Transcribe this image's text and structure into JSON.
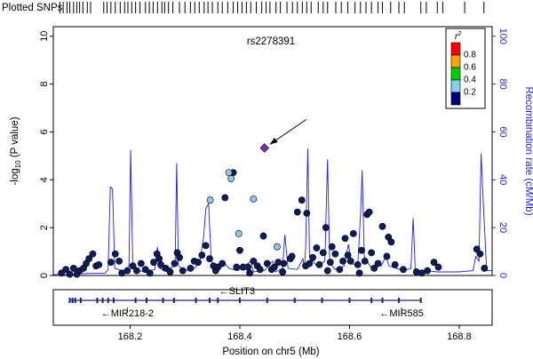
{
  "chart_data": {
    "type": "scatter",
    "title": "rs2278391",
    "snp_track_label": "Plotted SNPs",
    "xlabel": "Position on chr5 (Mb)",
    "ylabel_left": "-log10 (P value)",
    "ylabel_left_prefix": "-log",
    "ylabel_left_sub": "10",
    "ylabel_left_suffix": " (P value)",
    "ylabel_right": "Recombination rate (cM/Mb)",
    "xlim": [
      168.06,
      168.86
    ],
    "ylim": [
      0,
      10.4
    ],
    "right_ylim": [
      0,
      104
    ],
    "xticks": [
      "168.2",
      "168.4",
      "168.6",
      "168.8"
    ],
    "yticks_left": [
      "0",
      "2",
      "4",
      "6",
      "8",
      "10"
    ],
    "yticks_right": [
      "0",
      "20",
      "40",
      "60",
      "80",
      "100"
    ],
    "legend": {
      "title": "r",
      "title_sup": "2",
      "placement": "top-right",
      "bins": [
        {
          "label": "0.8",
          "color": "#ff0000"
        },
        {
          "label": "0.6",
          "color": "#ffa500"
        },
        {
          "label": "0.4",
          "color": "#00cc00"
        },
        {
          "label": "0.2",
          "color": "#87ceeb"
        },
        {
          "label": "",
          "color": "#000080"
        }
      ]
    },
    "colors": {
      "lead": "#7b2fa8",
      "low_ld": "#0b1d5b",
      "mid_ld": "#8ecae8",
      "recomb": "#1f1fe0"
    },
    "lead_snp": {
      "name": "rs2278391",
      "x": 168.445,
      "y": 5.33
    },
    "snp_track_positions": [
      168.072,
      168.078,
      168.085,
      168.09,
      168.097,
      168.103,
      168.108,
      168.114,
      168.122,
      168.128,
      168.152,
      168.158,
      168.165,
      168.173,
      168.182,
      168.19,
      168.196,
      168.203,
      168.21,
      168.218,
      168.228,
      168.235,
      168.242,
      168.25,
      168.258,
      168.263,
      168.27,
      168.278,
      168.29,
      168.3,
      168.31,
      168.318,
      168.326,
      168.335,
      168.342,
      168.35,
      168.36,
      168.368,
      168.378,
      168.388,
      168.396,
      168.404,
      168.412,
      168.42,
      168.43,
      168.44,
      168.448,
      168.455,
      168.466,
      168.474,
      168.486,
      168.496,
      168.505,
      168.514,
      168.522,
      168.53,
      168.543,
      168.552,
      168.56,
      168.575,
      168.585,
      168.597,
      168.61,
      168.62,
      168.63,
      168.64,
      168.652,
      168.66,
      168.675,
      168.69,
      168.7,
      168.73,
      168.74,
      168.76,
      168.77,
      168.81,
      168.845
    ],
    "points": [
      {
        "x": 168.075,
        "y": 0.1,
        "ld": "low"
      },
      {
        "x": 168.083,
        "y": 0.25,
        "ld": "low"
      },
      {
        "x": 168.09,
        "y": 0.05,
        "ld": "low"
      },
      {
        "x": 168.097,
        "y": 0.3,
        "ld": "low"
      },
      {
        "x": 168.103,
        "y": 0.05,
        "ld": "low"
      },
      {
        "x": 168.108,
        "y": 0.2,
        "ld": "low"
      },
      {
        "x": 168.115,
        "y": 0.3,
        "ld": "low"
      },
      {
        "x": 168.12,
        "y": 0.5,
        "ld": "low"
      },
      {
        "x": 168.125,
        "y": 0.7,
        "ld": "low"
      },
      {
        "x": 168.132,
        "y": 0.9,
        "ld": "low"
      },
      {
        "x": 168.138,
        "y": 0.4,
        "ld": "low"
      },
      {
        "x": 168.143,
        "y": 0.45,
        "ld": "low"
      },
      {
        "x": 168.165,
        "y": 0.55,
        "ld": "low"
      },
      {
        "x": 168.173,
        "y": 0.9,
        "ld": "low"
      },
      {
        "x": 168.18,
        "y": 0.6,
        "ld": "low"
      },
      {
        "x": 168.185,
        "y": 0.1,
        "ld": "low"
      },
      {
        "x": 168.195,
        "y": 0.2,
        "ld": "low"
      },
      {
        "x": 168.205,
        "y": 0.4,
        "ld": "low"
      },
      {
        "x": 168.212,
        "y": 0.2,
        "ld": "low"
      },
      {
        "x": 168.22,
        "y": 0.5,
        "ld": "low"
      },
      {
        "x": 168.228,
        "y": 0.25,
        "ld": "low"
      },
      {
        "x": 168.236,
        "y": 0.1,
        "ld": "low"
      },
      {
        "x": 168.243,
        "y": 0.55,
        "ld": "low"
      },
      {
        "x": 168.249,
        "y": 0.9,
        "ld": "low"
      },
      {
        "x": 168.253,
        "y": 0.7,
        "ld": "low"
      },
      {
        "x": 168.256,
        "y": 0.45,
        "ld": "low"
      },
      {
        "x": 168.265,
        "y": 0.3,
        "ld": "low"
      },
      {
        "x": 168.273,
        "y": 0.15,
        "ld": "low"
      },
      {
        "x": 168.281,
        "y": 0.5,
        "ld": "low"
      },
      {
        "x": 168.286,
        "y": 0.95,
        "ld": "low"
      },
      {
        "x": 168.29,
        "y": 0.75,
        "ld": "low"
      },
      {
        "x": 168.296,
        "y": 0.2,
        "ld": "low"
      },
      {
        "x": 168.31,
        "y": 0.3,
        "ld": "low"
      },
      {
        "x": 168.317,
        "y": 0.6,
        "ld": "low"
      },
      {
        "x": 168.324,
        "y": 0.55,
        "ld": "low"
      },
      {
        "x": 168.331,
        "y": 0.85,
        "ld": "low"
      },
      {
        "x": 168.338,
        "y": 1.25,
        "ld": "low"
      },
      {
        "x": 168.345,
        "y": 0.7,
        "ld": "low"
      },
      {
        "x": 168.352,
        "y": 0.4,
        "ld": "low"
      },
      {
        "x": 168.356,
        "y": 0.2,
        "ld": "low"
      },
      {
        "x": 168.36,
        "y": 0.35,
        "ld": "low"
      },
      {
        "x": 168.368,
        "y": 0.5,
        "ld": "low"
      },
      {
        "x": 168.373,
        "y": 3.25,
        "ld": "low"
      },
      {
        "x": 168.388,
        "y": 4.3,
        "ld": "low"
      },
      {
        "x": 168.394,
        "y": 0.35,
        "ld": "low"
      },
      {
        "x": 168.4,
        "y": 1.05,
        "ld": "low"
      },
      {
        "x": 168.406,
        "y": 0.35,
        "ld": "low"
      },
      {
        "x": 168.415,
        "y": 0.35,
        "ld": "low"
      },
      {
        "x": 168.418,
        "y": 0.1,
        "ld": "low"
      },
      {
        "x": 168.425,
        "y": 0.6,
        "ld": "low"
      },
      {
        "x": 168.432,
        "y": 0.4,
        "ld": "low"
      },
      {
        "x": 168.437,
        "y": 0.25,
        "ld": "low"
      },
      {
        "x": 168.443,
        "y": 1.65,
        "ld": "low"
      },
      {
        "x": 168.45,
        "y": 0.5,
        "ld": "low"
      },
      {
        "x": 168.458,
        "y": 0.25,
        "ld": "low"
      },
      {
        "x": 168.463,
        "y": 0.35,
        "ld": "low"
      },
      {
        "x": 168.47,
        "y": 0.55,
        "ld": "low"
      },
      {
        "x": 168.478,
        "y": 0.15,
        "ld": "low"
      },
      {
        "x": 168.48,
        "y": 0.5,
        "ld": "low"
      },
      {
        "x": 168.492,
        "y": 0.7,
        "ld": "low"
      },
      {
        "x": 168.495,
        "y": 0.8,
        "ld": "low"
      },
      {
        "x": 168.505,
        "y": 2.65,
        "ld": "low"
      },
      {
        "x": 168.513,
        "y": 3.15,
        "ld": "low"
      },
      {
        "x": 168.522,
        "y": 2.6,
        "ld": "low"
      },
      {
        "x": 168.52,
        "y": 0.4,
        "ld": "low"
      },
      {
        "x": 168.527,
        "y": 0.5,
        "ld": "low"
      },
      {
        "x": 168.533,
        "y": 0.75,
        "ld": "low"
      },
      {
        "x": 168.54,
        "y": 1.15,
        "ld": "low"
      },
      {
        "x": 168.545,
        "y": 0.45,
        "ld": "low"
      },
      {
        "x": 168.552,
        "y": 0.95,
        "ld": "low"
      },
      {
        "x": 168.557,
        "y": 2.0,
        "ld": "low"
      },
      {
        "x": 168.56,
        "y": 0.2,
        "ld": "low"
      },
      {
        "x": 168.565,
        "y": 0.55,
        "ld": "low"
      },
      {
        "x": 168.568,
        "y": 1.2,
        "ld": "low"
      },
      {
        "x": 168.574,
        "y": 0.9,
        "ld": "low"
      },
      {
        "x": 168.582,
        "y": 0.25,
        "ld": "low"
      },
      {
        "x": 168.588,
        "y": 0.6,
        "ld": "low"
      },
      {
        "x": 168.592,
        "y": 1.55,
        "ld": "low"
      },
      {
        "x": 168.597,
        "y": 0.85,
        "ld": "low"
      },
      {
        "x": 168.602,
        "y": 0.6,
        "ld": "low"
      },
      {
        "x": 168.607,
        "y": 1.75,
        "ld": "low"
      },
      {
        "x": 168.615,
        "y": 0.45,
        "ld": "low"
      },
      {
        "x": 168.618,
        "y": 0.1,
        "ld": "low"
      },
      {
        "x": 168.622,
        "y": 1.05,
        "ld": "low"
      },
      {
        "x": 168.628,
        "y": 0.6,
        "ld": "low"
      },
      {
        "x": 168.632,
        "y": 2.55,
        "ld": "low"
      },
      {
        "x": 168.636,
        "y": 2.65,
        "ld": "low"
      },
      {
        "x": 168.64,
        "y": 0.95,
        "ld": "low"
      },
      {
        "x": 168.645,
        "y": 0.3,
        "ld": "low"
      },
      {
        "x": 168.652,
        "y": 0.5,
        "ld": "low"
      },
      {
        "x": 168.66,
        "y": 2.05,
        "ld": "low"
      },
      {
        "x": 168.668,
        "y": 0.8,
        "ld": "low"
      },
      {
        "x": 168.671,
        "y": 1.6,
        "ld": "low"
      },
      {
        "x": 168.676,
        "y": 1.4,
        "ld": "low"
      },
      {
        "x": 168.683,
        "y": 0.45,
        "ld": "low"
      },
      {
        "x": 168.698,
        "y": 0.25,
        "ld": "low"
      },
      {
        "x": 168.722,
        "y": 0.15,
        "ld": "low"
      },
      {
        "x": 168.732,
        "y": 0.1,
        "ld": "low"
      },
      {
        "x": 168.742,
        "y": 0.2,
        "ld": "low"
      },
      {
        "x": 168.754,
        "y": 0.55,
        "ld": "low"
      },
      {
        "x": 168.762,
        "y": 0.35,
        "ld": "low"
      },
      {
        "x": 168.832,
        "y": 1.1,
        "ld": "low"
      },
      {
        "x": 168.838,
        "y": 0.9,
        "ld": "low"
      },
      {
        "x": 168.846,
        "y": 0.3,
        "ld": "low"
      },
      {
        "x": 168.346,
        "y": 3.15,
        "ld": "mid"
      },
      {
        "x": 168.38,
        "y": 4.3,
        "ld": "mid"
      },
      {
        "x": 168.384,
        "y": 4.05,
        "ld": "mid"
      },
      {
        "x": 168.425,
        "y": 3.2,
        "ld": "mid"
      },
      {
        "x": 168.398,
        "y": 1.75,
        "ld": "mid"
      },
      {
        "x": 168.468,
        "y": 1.2,
        "ld": "mid"
      }
    ],
    "recombination": [
      [
        168.06,
        0.4
      ],
      [
        168.09,
        0.5
      ],
      [
        168.12,
        0.8
      ],
      [
        168.155,
        1.0
      ],
      [
        168.16,
        2.5
      ],
      [
        168.164,
        37
      ],
      [
        168.168,
        36
      ],
      [
        168.172,
        3
      ],
      [
        168.19,
        1.5
      ],
      [
        168.198,
        4
      ],
      [
        168.201,
        52.5
      ],
      [
        168.205,
        3
      ],
      [
        168.225,
        1.5
      ],
      [
        168.245,
        2.5
      ],
      [
        168.25,
        12
      ],
      [
        168.254,
        3
      ],
      [
        168.262,
        2
      ],
      [
        168.282,
        4
      ],
      [
        168.285,
        47
      ],
      [
        168.288,
        4
      ],
      [
        168.3,
        2
      ],
      [
        168.318,
        3
      ],
      [
        168.328,
        7
      ],
      [
        168.334,
        16
      ],
      [
        168.338,
        28
      ],
      [
        168.343,
        30
      ],
      [
        168.348,
        6
      ],
      [
        168.36,
        2.5
      ],
      [
        168.372,
        5
      ],
      [
        168.38,
        3
      ],
      [
        168.395,
        2
      ],
      [
        168.405,
        3
      ],
      [
        168.42,
        6
      ],
      [
        168.425,
        1.5
      ],
      [
        168.445,
        2
      ],
      [
        168.46,
        6
      ],
      [
        168.465,
        1.5
      ],
      [
        168.478,
        3
      ],
      [
        168.482,
        17
      ],
      [
        168.488,
        3
      ],
      [
        168.505,
        2.5
      ],
      [
        168.515,
        7
      ],
      [
        168.518,
        3
      ],
      [
        168.52,
        12
      ],
      [
        168.524,
        53
      ],
      [
        168.527,
        8
      ],
      [
        168.54,
        4
      ],
      [
        168.555,
        6
      ],
      [
        168.56,
        48.5
      ],
      [
        168.564,
        5
      ],
      [
        168.575,
        2.5
      ],
      [
        168.59,
        4
      ],
      [
        168.598,
        13
      ],
      [
        168.604,
        5
      ],
      [
        168.615,
        4
      ],
      [
        168.62,
        25
      ],
      [
        168.623,
        44
      ],
      [
        168.627,
        8
      ],
      [
        168.64,
        3
      ],
      [
        168.65,
        5
      ],
      [
        168.658,
        4
      ],
      [
        168.666,
        8
      ],
      [
        168.672,
        4
      ],
      [
        168.685,
        3
      ],
      [
        168.7,
        2
      ],
      [
        168.712,
        3
      ],
      [
        168.716,
        24
      ],
      [
        168.72,
        2
      ],
      [
        168.74,
        2
      ],
      [
        168.76,
        1.5
      ],
      [
        168.8,
        1.5
      ],
      [
        168.825,
        2
      ],
      [
        168.83,
        8
      ],
      [
        168.836,
        6
      ],
      [
        168.84,
        51
      ],
      [
        168.844,
        30
      ],
      [
        168.85,
        2
      ],
      [
        168.86,
        2
      ]
    ],
    "genes": [
      {
        "label": "←SLIT3",
        "label_x": 168.395,
        "start": 168.09,
        "end": 168.73,
        "row": 0,
        "exons": [
          168.09,
          168.095,
          168.1,
          168.11,
          168.14,
          168.15,
          168.16,
          168.17,
          168.21,
          168.23,
          168.26,
          168.28,
          168.32,
          168.345,
          168.36,
          168.4,
          168.45,
          168.5,
          168.55,
          168.6,
          168.64,
          168.66,
          168.69,
          168.73
        ]
      },
      {
        "label": "←MIR218-2",
        "label_x": 168.195,
        "x": 168.195,
        "row": 1
      },
      {
        "label": "←MIR585",
        "label_x": 168.695,
        "x": 168.695,
        "row": 1
      }
    ]
  }
}
